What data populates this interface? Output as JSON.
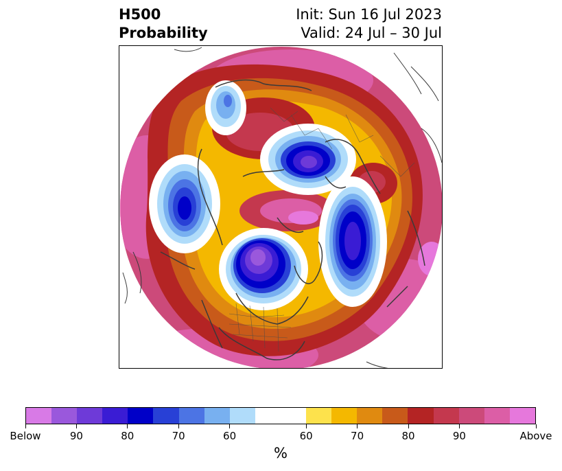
{
  "title": {
    "left_line1": "H500",
    "left_line2": "Probability",
    "right_line1": "Init: Sun 16 Jul 2023",
    "right_line2": "Valid: 24 Jul – 30 Jul"
  },
  "colorbar": {
    "unit": "%",
    "colors": [
      "#d87ae6",
      "#9a58dc",
      "#6e3ad8",
      "#3a1cd4",
      "#0000c8",
      "#2840d6",
      "#4c74e4",
      "#78b0f0",
      "#b0dcfa",
      "#ffffff",
      "#fde24c",
      "#f4b800",
      "#e08a10",
      "#c85a1a",
      "#b42424",
      "#c4384e",
      "#cc4a7a",
      "#dc5ea6",
      "#e678dc"
    ],
    "tick_labels": [
      "Below",
      "90",
      "80",
      "70",
      "60",
      "60",
      "70",
      "80",
      "90",
      "Above"
    ]
  },
  "map": {
    "projection": "polar stereographic (north pole)",
    "field": "500 hPa height anomaly probability"
  }
}
